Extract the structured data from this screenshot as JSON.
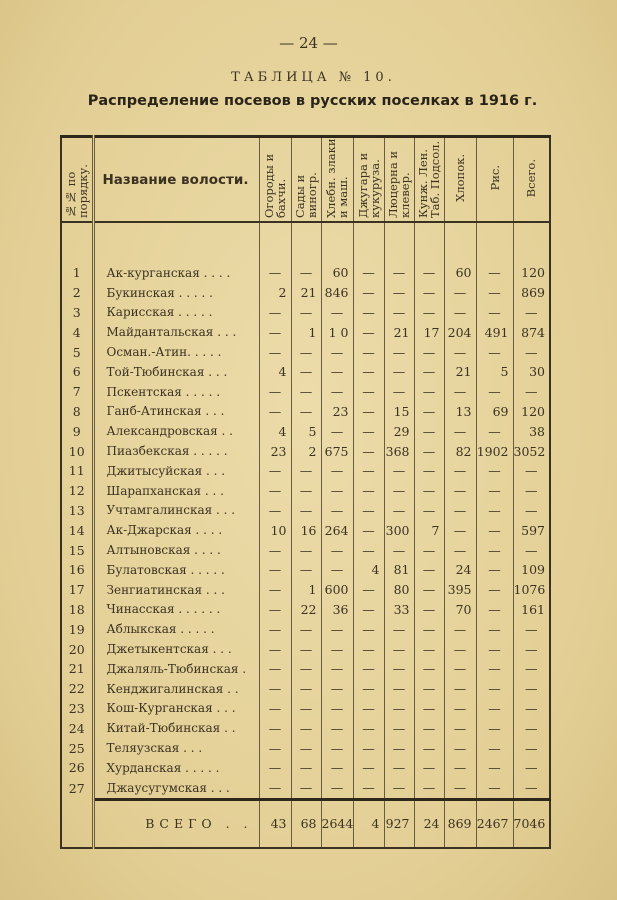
{
  "page_number": "— 24 —",
  "table_number": "ТАБЛИЦА № 10.",
  "title": "Распределение посевов в русских поселках в 1916 г.",
  "columns": [
    "№№ по порядку.",
    "Название волости.",
    "Огороды и бахчи.",
    "Сады и виногр.",
    "Хлебн. злаки и маш.",
    "Джугара и кукуруза.",
    "Люцерна и клевер.",
    "Кунж. Лен. Таб. Подсол.",
    "Хлопок.",
    "Рис.",
    "Всего."
  ],
  "rows": [
    [
      "1",
      "Ак-курганская . . . .",
      "—",
      "—",
      "60",
      "—",
      "—",
      "—",
      "60",
      "—",
      "120"
    ],
    [
      "2",
      "Букинская . . . . .",
      "2",
      "21",
      "846",
      "—",
      "—",
      "—",
      "—",
      "—",
      "869"
    ],
    [
      "3",
      "Карисская . . . . .",
      "—",
      "—",
      "—",
      "—",
      "—",
      "—",
      "—",
      "—",
      "—"
    ],
    [
      "4",
      "Майдантальская . . .",
      "—",
      "1",
      "1 0",
      "—",
      "21",
      "17",
      "204",
      "491",
      "874"
    ],
    [
      "5",
      "Осман.-Атин. . . . .",
      "—",
      "—",
      "—",
      "—",
      "—",
      "—",
      "—",
      "—",
      "—"
    ],
    [
      "6",
      "Той-Тюбинская . . .",
      "4",
      "—",
      "—",
      "—",
      "—",
      "—",
      "21",
      "5",
      "30"
    ],
    [
      "7",
      "Пскентская . . . . .",
      "—",
      "—",
      "—",
      "—",
      "—",
      "—",
      "—",
      "—",
      "—"
    ],
    [
      "8",
      "Ганб-Атинская . . .",
      "—",
      "—",
      "23",
      "—",
      "15",
      "—",
      "13",
      "69",
      "120"
    ],
    [
      "9",
      "Александровская . .",
      "4",
      "5",
      "—",
      "—",
      "29",
      "—",
      "—",
      "—",
      "38"
    ],
    [
      "10",
      "Пиазбекская . . . . .",
      "23",
      "2",
      "675",
      "—",
      "368",
      "—",
      "82",
      "1902",
      "3052"
    ],
    [
      "11",
      "Джитысуйская . . .",
      "—",
      "—",
      "—",
      "—",
      "—",
      "—",
      "—",
      "—",
      "—"
    ],
    [
      "12",
      "Шарапханская . . .",
      "—",
      "—",
      "—",
      "—",
      "—",
      "—",
      "—",
      "—",
      "—"
    ],
    [
      "13",
      "Учтамгалинская . . .",
      "—",
      "—",
      "—",
      "—",
      "—",
      "—",
      "—",
      "—",
      "—"
    ],
    [
      "14",
      "Ак-Джарская . . . .",
      "10",
      "16",
      "264",
      "—",
      "300",
      "7",
      "—",
      "—",
      "597"
    ],
    [
      "15",
      "Алтыновская . . . .",
      "—",
      "—",
      "—",
      "—",
      "—",
      "—",
      "—",
      "—",
      "—"
    ],
    [
      "16",
      "Булатовская . . . . .",
      "—",
      "—",
      "—",
      "4",
      "81",
      "—",
      "24",
      "—",
      "109"
    ],
    [
      "17",
      "Зенгиатинская . . .",
      "—",
      "1",
      "600",
      "—",
      "80",
      "—",
      "395",
      "—",
      "1076"
    ],
    [
      "18",
      "Чинасская . . . . . .",
      "—",
      "22",
      "36",
      "—",
      "33",
      "—",
      "70",
      "—",
      "161"
    ],
    [
      "19",
      "Аблыкская . . . . .",
      "—",
      "—",
      "—",
      "—",
      "—",
      "—",
      "—",
      "—",
      "—"
    ],
    [
      "20",
      "Джетыкентская . . .",
      "—",
      "—",
      "—",
      "—",
      "—",
      "—",
      "—",
      "—",
      "—"
    ],
    [
      "21",
      "Джаляль-Тюбинская .",
      "—",
      "—",
      "—",
      "—",
      "—",
      "—",
      "—",
      "—",
      "—"
    ],
    [
      "22",
      "Кенджигалинская . .",
      "—",
      "—",
      "—",
      "—",
      "—",
      "—",
      "—",
      "—",
      "—"
    ],
    [
      "23",
      "Кош-Курганская . . .",
      "—",
      "—",
      "—",
      "—",
      "—",
      "—",
      "—",
      "—",
      "—"
    ],
    [
      "24",
      "Китай-Тюбинская . .",
      "—",
      "—",
      "—",
      "—",
      "—",
      "—",
      "—",
      "—",
      "—"
    ],
    [
      "25",
      "Теляузская . .   .",
      "—",
      "—",
      "—",
      "—",
      "—",
      "—",
      "—",
      "—",
      "—"
    ],
    [
      "26",
      "Хурданская . . . . .",
      "—",
      "—",
      "—",
      "—",
      "—",
      "—",
      "—",
      "—",
      "—"
    ],
    [
      "27",
      "Джаусугумская . . .",
      "—",
      "—",
      "—",
      "—",
      "—",
      "—",
      "—",
      "—",
      "—"
    ]
  ],
  "total": {
    "label": "ВСЕГО . .",
    "values": [
      "43",
      "68",
      "2644",
      "4",
      "927",
      "24",
      "869",
      "2467",
      "7046"
    ]
  }
}
